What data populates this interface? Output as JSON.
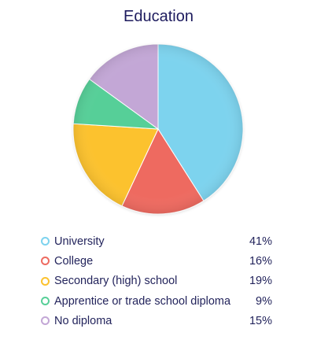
{
  "chart_data": {
    "type": "pie",
    "title": "Education",
    "slices": [
      {
        "label": "University",
        "value": 41,
        "display": "41%",
        "color": "#7dd3ee"
      },
      {
        "label": "College",
        "value": 16,
        "display": "16%",
        "color": "#ee6b61"
      },
      {
        "label": "Secondary (high) school",
        "value": 19,
        "display": "19%",
        "color": "#fcc22f"
      },
      {
        "label": "Apprentice or trade school diploma",
        "value": 9,
        "display": "9%",
        "color": "#57cf98"
      },
      {
        "label": "No diploma",
        "value": 15,
        "display": "15%",
        "color": "#c3a7d6"
      }
    ],
    "start_angle": "12 o'clock",
    "direction": "clockwise",
    "legend": "below"
  }
}
